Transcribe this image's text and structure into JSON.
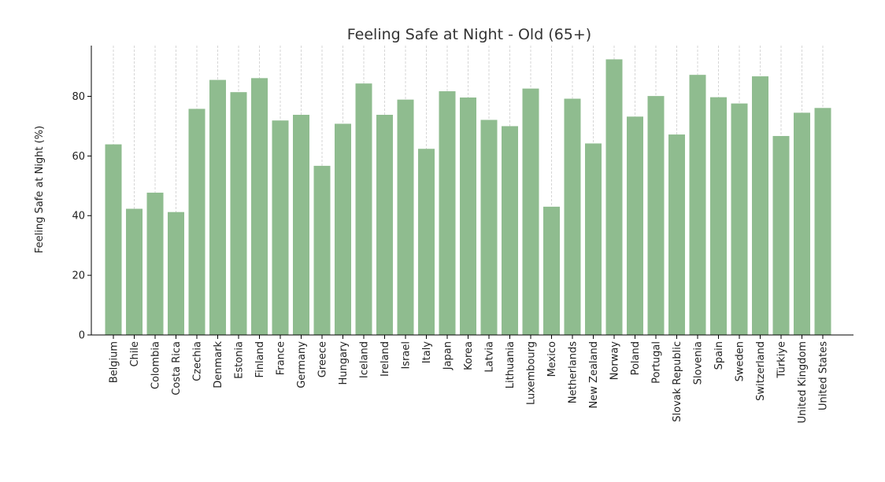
{
  "chart_data": {
    "type": "bar",
    "title": "Feeling Safe at Night - Old (65+)",
    "xlabel": "",
    "ylabel": "Feeling Safe at Night (%)",
    "ylim": [
      0,
      97
    ],
    "yticks": [
      0,
      20,
      40,
      60,
      80
    ],
    "grid": "vertical dashed",
    "bar_color": "#8fbc8f",
    "categories": [
      "Belgium",
      "Chile",
      "Colombia",
      "Costa Rica",
      "Czechia",
      "Denmark",
      "Estonia",
      "Finland",
      "France",
      "Germany",
      "Greece",
      "Hungary",
      "Iceland",
      "Ireland",
      "Israel",
      "Italy",
      "Japan",
      "Korea",
      "Latvia",
      "Lithuania",
      "Luxembourg",
      "Mexico",
      "Netherlands",
      "New Zealand",
      "Norway",
      "Poland",
      "Portugal",
      "Slovak Republic",
      "Slovenia",
      "Spain",
      "Sweden",
      "Switzerland",
      "Türkiye",
      "United Kingdom",
      "United States"
    ],
    "values": [
      63.9,
      42.3,
      47.7,
      41.2,
      75.8,
      85.5,
      81.4,
      86.1,
      71.9,
      73.8,
      56.7,
      70.8,
      84.3,
      73.8,
      78.9,
      62.4,
      81.7,
      79.6,
      72.1,
      70.0,
      82.6,
      43.0,
      79.2,
      64.2,
      92.4,
      73.2,
      80.1,
      67.2,
      87.2,
      79.7,
      77.6,
      86.7,
      66.7,
      74.5,
      76.1
    ]
  }
}
